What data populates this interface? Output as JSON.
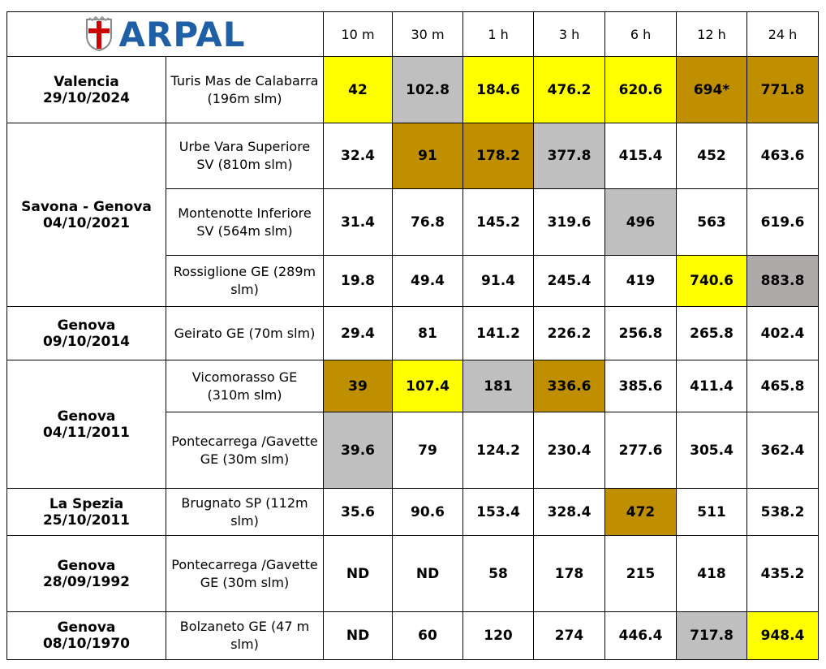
{
  "header": {
    "logo": "ARPAL",
    "columns": [
      "10 m",
      "30 m",
      "1 h",
      "3 h",
      "6 h",
      "12 h",
      "24 h"
    ]
  },
  "events": [
    {
      "place": "Valencia",
      "date": "29/10/2024",
      "stations": [
        {
          "name": "Turis Mas de Calabarra (196m slm)",
          "values": [
            "42",
            "102.8",
            "184.6",
            "476.2",
            "620.6",
            "694*",
            "771.8"
          ],
          "colors": [
            "#ffff00",
            "#bfbfbf",
            "#ffff00",
            "#ffff00",
            "#ffff00",
            "#bf8f00",
            "#bf8f00"
          ]
        }
      ]
    },
    {
      "place": "Savona - Genova",
      "date": "04/10/2021",
      "stations": [
        {
          "name": "Urbe Vara Superiore SV (810m slm)",
          "values": [
            "32.4",
            "91",
            "178.2",
            "377.8",
            "415.4",
            "452",
            "463.6"
          ],
          "colors": [
            null,
            "#bf8f00",
            "#bf8f00",
            "#bfbfbf",
            null,
            null,
            null
          ]
        },
        {
          "name": "Montenotte Inferiore SV (564m slm)",
          "values": [
            "31.4",
            "76.8",
            "145.2",
            "319.6",
            "496",
            "563",
            "619.6"
          ],
          "colors": [
            null,
            null,
            null,
            null,
            "#bfbfbf",
            null,
            null
          ]
        },
        {
          "name": "Rossiglione GE (289m slm)",
          "values": [
            "19.8",
            "49.4",
            "91.4",
            "245.4",
            "419",
            "740.6",
            "883.8"
          ],
          "colors": [
            null,
            null,
            null,
            null,
            null,
            "#ffff00",
            "#aeaaaa"
          ]
        }
      ]
    },
    {
      "place": "Genova",
      "date": "09/10/2014",
      "stations": [
        {
          "name": "Geirato GE (70m slm)",
          "values": [
            "29.4",
            "81",
            "141.2",
            "226.2",
            "256.8",
            "265.8",
            "402.4"
          ],
          "colors": [
            null,
            null,
            null,
            null,
            null,
            null,
            null
          ]
        }
      ]
    },
    {
      "place": "Genova",
      "date": "04/11/2011",
      "stations": [
        {
          "name": "Vicomorasso GE (310m slm)",
          "values": [
            "39",
            "107.4",
            "181",
            "336.6",
            "385.6",
            "411.4",
            "465.8"
          ],
          "colors": [
            "#bf8f00",
            "#ffff00",
            "#bfbfbf",
            "#bf8f00",
            null,
            null,
            null
          ]
        },
        {
          "name": "Pontecarrega /Gavette GE (30m slm)",
          "values": [
            "39.6",
            "79",
            "124.2",
            "230.4",
            "277.6",
            "305.4",
            "362.4"
          ],
          "colors": [
            "#bfbfbf",
            null,
            null,
            null,
            null,
            null,
            null
          ]
        }
      ]
    },
    {
      "place": "La Spezia",
      "date": "25/10/2011",
      "stations": [
        {
          "name": "Brugnato SP (112m slm)",
          "values": [
            "35.6",
            "90.6",
            "153.4",
            "328.4",
            "472",
            "511",
            "538.2"
          ],
          "colors": [
            null,
            null,
            null,
            null,
            "#bf8f00",
            null,
            null
          ]
        }
      ]
    },
    {
      "place": "Genova",
      "date": "28/09/1992",
      "stations": [
        {
          "name": "Pontecarrega /Gavette GE (30m slm)",
          "values": [
            "ND",
            "ND",
            "58",
            "178",
            "215",
            "418",
            "435.2"
          ],
          "colors": [
            null,
            null,
            null,
            null,
            null,
            null,
            null
          ]
        }
      ]
    },
    {
      "place": "Genova",
      "date": "08/10/1970",
      "stations": [
        {
          "name": "Bolzaneto GE (47 m slm)",
          "values": [
            "ND",
            "60",
            "120",
            "274",
            "446.4",
            "717.8",
            "948.4"
          ],
          "colors": [
            null,
            null,
            null,
            null,
            null,
            "#bfbfbf",
            "#ffff00"
          ]
        }
      ]
    }
  ]
}
